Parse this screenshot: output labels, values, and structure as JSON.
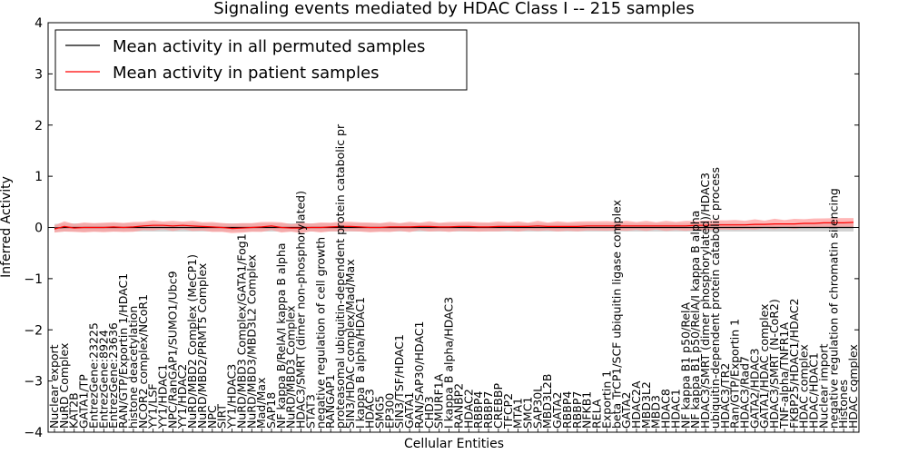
{
  "chart_data": {
    "type": "line",
    "title": "Signaling events mediated by HDAC Class I -- 215 samples",
    "xlabel": "Cellular Entities",
    "ylabel": "Inferred Activity",
    "ylim": [
      -4,
      4
    ],
    "yticks": [
      "4",
      "3",
      "2",
      "1",
      "0",
      "−1",
      "−2",
      "−3",
      "−4"
    ],
    "grid": false,
    "legend_position": "top-left",
    "colors": {
      "permuted": "#000000",
      "patient": "#ff0000",
      "patient_band": "#ff9999",
      "permuted_band": "#c8c8c8"
    },
    "categories": [
      "Nuclear export",
      "NuRD Complex",
      "KAT2B",
      "GATA1/TP",
      "EntrezGene:23225",
      "EntrezGene:8924",
      "EntrezGene:23636",
      "RAN/GTP/Exportin 1/HDAC1",
      "histone deacetylation",
      "NCOR2 complex/NCoR1",
      "YY1/LSF",
      "YY1/HDAC1",
      "NPC/RanGAP1/SUMO1/Ubc9",
      "YY1/HDAC2",
      "NuRD/MBD2 Complex (MeCP1)",
      "NuRD/MBD2/PRMT5 Complex",
      "NPC",
      "SIRT",
      "YY1/HDAC3",
      "NuRD/MBD3 Complex/GATA1/Fog1",
      "NuRD/MBD3/MBD3L2 Complex",
      "Mad/Max",
      "SAP18",
      "NF kappa B/RelA/I kappa B alpha",
      "NuRD/MBD3 Complex",
      "HDAC3/SMRT (dimer non-phosphorylated)",
      "STAT3",
      "negative regulation of cell growth",
      "RANGAP1",
      "proteasomal ubiquitin-dependent protein catabolic pr",
      "SIN3/HDAC complex/Mad/Max",
      "I kappa B alpha/HDAC1",
      "HDAC3",
      "SMG5",
      "EP300",
      "SIN3/TSF/HDAC1",
      "GATA1",
      "RAN/SAP30/HDAC1",
      "CHD3",
      "SMURF1A",
      "I kappa B alpha/HDAC3",
      "RANBP2",
      "HDAC2",
      "RBBP4",
      "RBBP7",
      "CREBBP",
      "TFCP2",
      "MTA1",
      "SMC1",
      "SAP30L",
      "MBD3L2B",
      "GATA2",
      "RBBP4",
      "RBBP7",
      "NFKB1",
      "RELA",
      "Exportin 1",
      "beta TrCP1/SCF ubiquitin ligase complex",
      "GATA2",
      "HDAC2A",
      "MBD3L2",
      "MBD3",
      "HDAC8",
      "HDAC1",
      "NF kappa B1 p50/RelA",
      "NF kappa B1 p50/RelA/I kappa B alpha",
      "HDAC3/SMRT (dimer phosphorylated)/HDAC3",
      "ubiquitin-dependent protein catabolic process",
      "HDAC3/TR2",
      "Ran/GTP/Exportin 1",
      "HDAC3/Rad7",
      "GATA2/HDAC3",
      "GATA1/HDAC complex",
      "HDAC3/SMRT (N-CoR2)",
      "TNF-alpha/TNFR1A",
      "FKBP25/HDAC1/HDAC2",
      "HDAC complex",
      "HDAC/HDAC1",
      "Nuclear import",
      "negative regulation of chromatin silencing",
      "Histones",
      "HDAC complex"
    ],
    "series": [
      {
        "name": "Mean activity in all permuted samples",
        "values": [
          -0.01,
          0,
          0,
          0,
          0,
          0,
          0,
          0,
          0,
          0,
          0,
          0,
          0,
          0,
          0,
          0,
          0,
          0,
          0,
          0,
          0,
          0,
          0,
          0,
          0,
          0,
          0,
          0,
          0,
          0,
          0,
          0,
          0,
          0,
          0,
          0,
          0,
          0,
          0,
          0,
          0,
          0,
          0,
          0,
          0,
          0,
          0,
          0,
          0,
          0,
          0,
          0,
          0,
          0,
          0,
          0,
          0,
          0,
          0,
          0,
          0,
          0,
          0,
          0,
          0,
          0,
          0,
          0,
          0,
          0,
          0,
          0,
          0,
          0,
          0,
          0,
          0,
          0,
          0,
          0,
          0,
          0
        ]
      },
      {
        "name": "Mean activity in patient samples",
        "values": [
          -0.03,
          0.02,
          -0.01,
          0,
          0,
          0,
          0.01,
          0,
          0.01,
          0.03,
          0.04,
          0.04,
          0.03,
          0.04,
          0.03,
          0.02,
          0.01,
          0,
          -0.02,
          -0.01,
          0,
          0.01,
          0.03,
          0,
          -0.01,
          -0.01,
          0,
          0,
          0.01,
          0.02,
          0.02,
          0.01,
          0,
          0,
          0.01,
          0.01,
          0.01,
          0.02,
          0.02,
          0.01,
          0.01,
          0.02,
          0.02,
          0.01,
          0.01,
          0.02,
          0.02,
          0.02,
          0.02,
          0.03,
          0.02,
          0.02,
          0.02,
          0.02,
          0.03,
          0.03,
          0.03,
          0.03,
          0.03,
          0.03,
          0.03,
          0.03,
          0.03,
          0.03,
          0.03,
          0.04,
          0.04,
          0.05,
          0.05,
          0.05,
          0.05,
          0.06,
          0.06,
          0.07,
          0.07,
          0.07,
          0.08,
          0.08,
          0.09,
          0.09,
          0.09,
          0.1
        ]
      }
    ]
  }
}
